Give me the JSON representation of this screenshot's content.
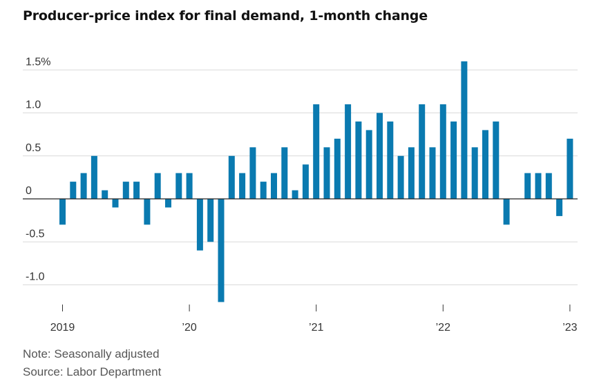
{
  "title": "Producer-price index for final demand, 1-month change",
  "note": "Note: Seasonally adjusted",
  "source": "Source: Labor Department",
  "colors": {
    "bar": "#0a7ab0",
    "grid": "#d9d9d9",
    "zero": "#222222"
  },
  "chart_data": {
    "type": "bar",
    "ylim": [
      -1.2,
      1.6
    ],
    "y_ticks": [
      {
        "value": 1.5,
        "label": "1.5%"
      },
      {
        "value": 1.0,
        "label": "1.0"
      },
      {
        "value": 0.5,
        "label": "0.5"
      },
      {
        "value": 0,
        "label": "0"
      },
      {
        "value": -0.5,
        "label": "-0.5"
      },
      {
        "value": -1.0,
        "label": "-1.0"
      }
    ],
    "x_ticks": [
      {
        "date": "2019-01",
        "label": "2019"
      },
      {
        "date": "2020-01",
        "label": "’20"
      },
      {
        "date": "2021-01",
        "label": "’21"
      },
      {
        "date": "2022-01",
        "label": "’22"
      },
      {
        "date": "2023-01",
        "label": "’23"
      }
    ],
    "grid": true,
    "categories": [
      "2019-01",
      "2019-02",
      "2019-03",
      "2019-04",
      "2019-05",
      "2019-06",
      "2019-07",
      "2019-08",
      "2019-09",
      "2019-10",
      "2019-11",
      "2019-12",
      "2020-01",
      "2020-02",
      "2020-03",
      "2020-04",
      "2020-05",
      "2020-06",
      "2020-07",
      "2020-08",
      "2020-09",
      "2020-10",
      "2020-11",
      "2020-12",
      "2021-01",
      "2021-02",
      "2021-03",
      "2021-04",
      "2021-05",
      "2021-06",
      "2021-07",
      "2021-08",
      "2021-09",
      "2021-10",
      "2021-11",
      "2021-12",
      "2022-01",
      "2022-02",
      "2022-03",
      "2022-04",
      "2022-05",
      "2022-06",
      "2022-07",
      "2022-08",
      "2022-09",
      "2022-10",
      "2022-11",
      "2022-12",
      "2023-01"
    ],
    "values": [
      -0.3,
      0.2,
      0.3,
      0.5,
      0.1,
      -0.1,
      0.2,
      0.2,
      -0.3,
      0.3,
      -0.1,
      0.3,
      0.3,
      -0.6,
      -0.5,
      -1.2,
      0.5,
      0.3,
      0.6,
      0.2,
      0.3,
      0.6,
      0.1,
      0.4,
      1.1,
      0.6,
      0.7,
      1.1,
      0.9,
      0.8,
      1.0,
      0.9,
      0.5,
      0.6,
      1.1,
      0.6,
      1.1,
      0.9,
      1.6,
      0.6,
      0.8,
      0.9,
      -0.3,
      0.0,
      0.3,
      0.3,
      0.3,
      -0.2,
      0.7
    ]
  }
}
